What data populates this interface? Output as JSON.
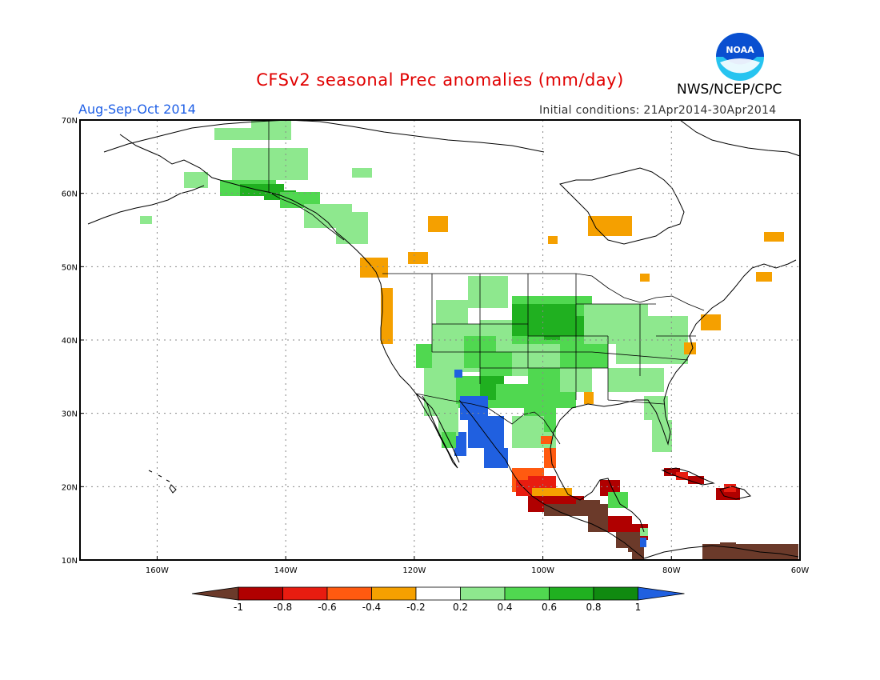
{
  "header": {
    "title": "CFSv2 seasonal Prec anomalies (mm/day)",
    "period": "Aug-Sep-Oct 2014",
    "initial_conditions": "Initial conditions: 21Apr2014-30Apr2014",
    "agency": "NWS/NCEP/CPC",
    "logo_text": "NOAA"
  },
  "axes": {
    "lat_labels": [
      "70N",
      "60N",
      "50N",
      "40N",
      "30N",
      "20N",
      "10N"
    ],
    "lon_labels": [
      "160W",
      "140W",
      "120W",
      "100W",
      "80W",
      "60W"
    ]
  },
  "colorbar": {
    "tick_labels": [
      "-1",
      "-0.8",
      "-0.6",
      "-0.4",
      "-0.2",
      "0.2",
      "0.4",
      "0.6",
      "0.8",
      "1"
    ],
    "colors": [
      "#6b3a2a",
      "#b00000",
      "#e81c10",
      "#ff5a10",
      "#f5a000",
      "#ffffff",
      "#8ee88e",
      "#50d850",
      "#20b020",
      "#108a10",
      "#2060e0"
    ]
  },
  "colors": {
    "title": "#e00000",
    "period": "#1e5fe6",
    "noaa_blue": "#0a4fd0",
    "noaa_cyan": "#27c4f0"
  },
  "map": {
    "lon_range": [
      -172,
      -60
    ],
    "lat_range": [
      10,
      70
    ]
  }
}
